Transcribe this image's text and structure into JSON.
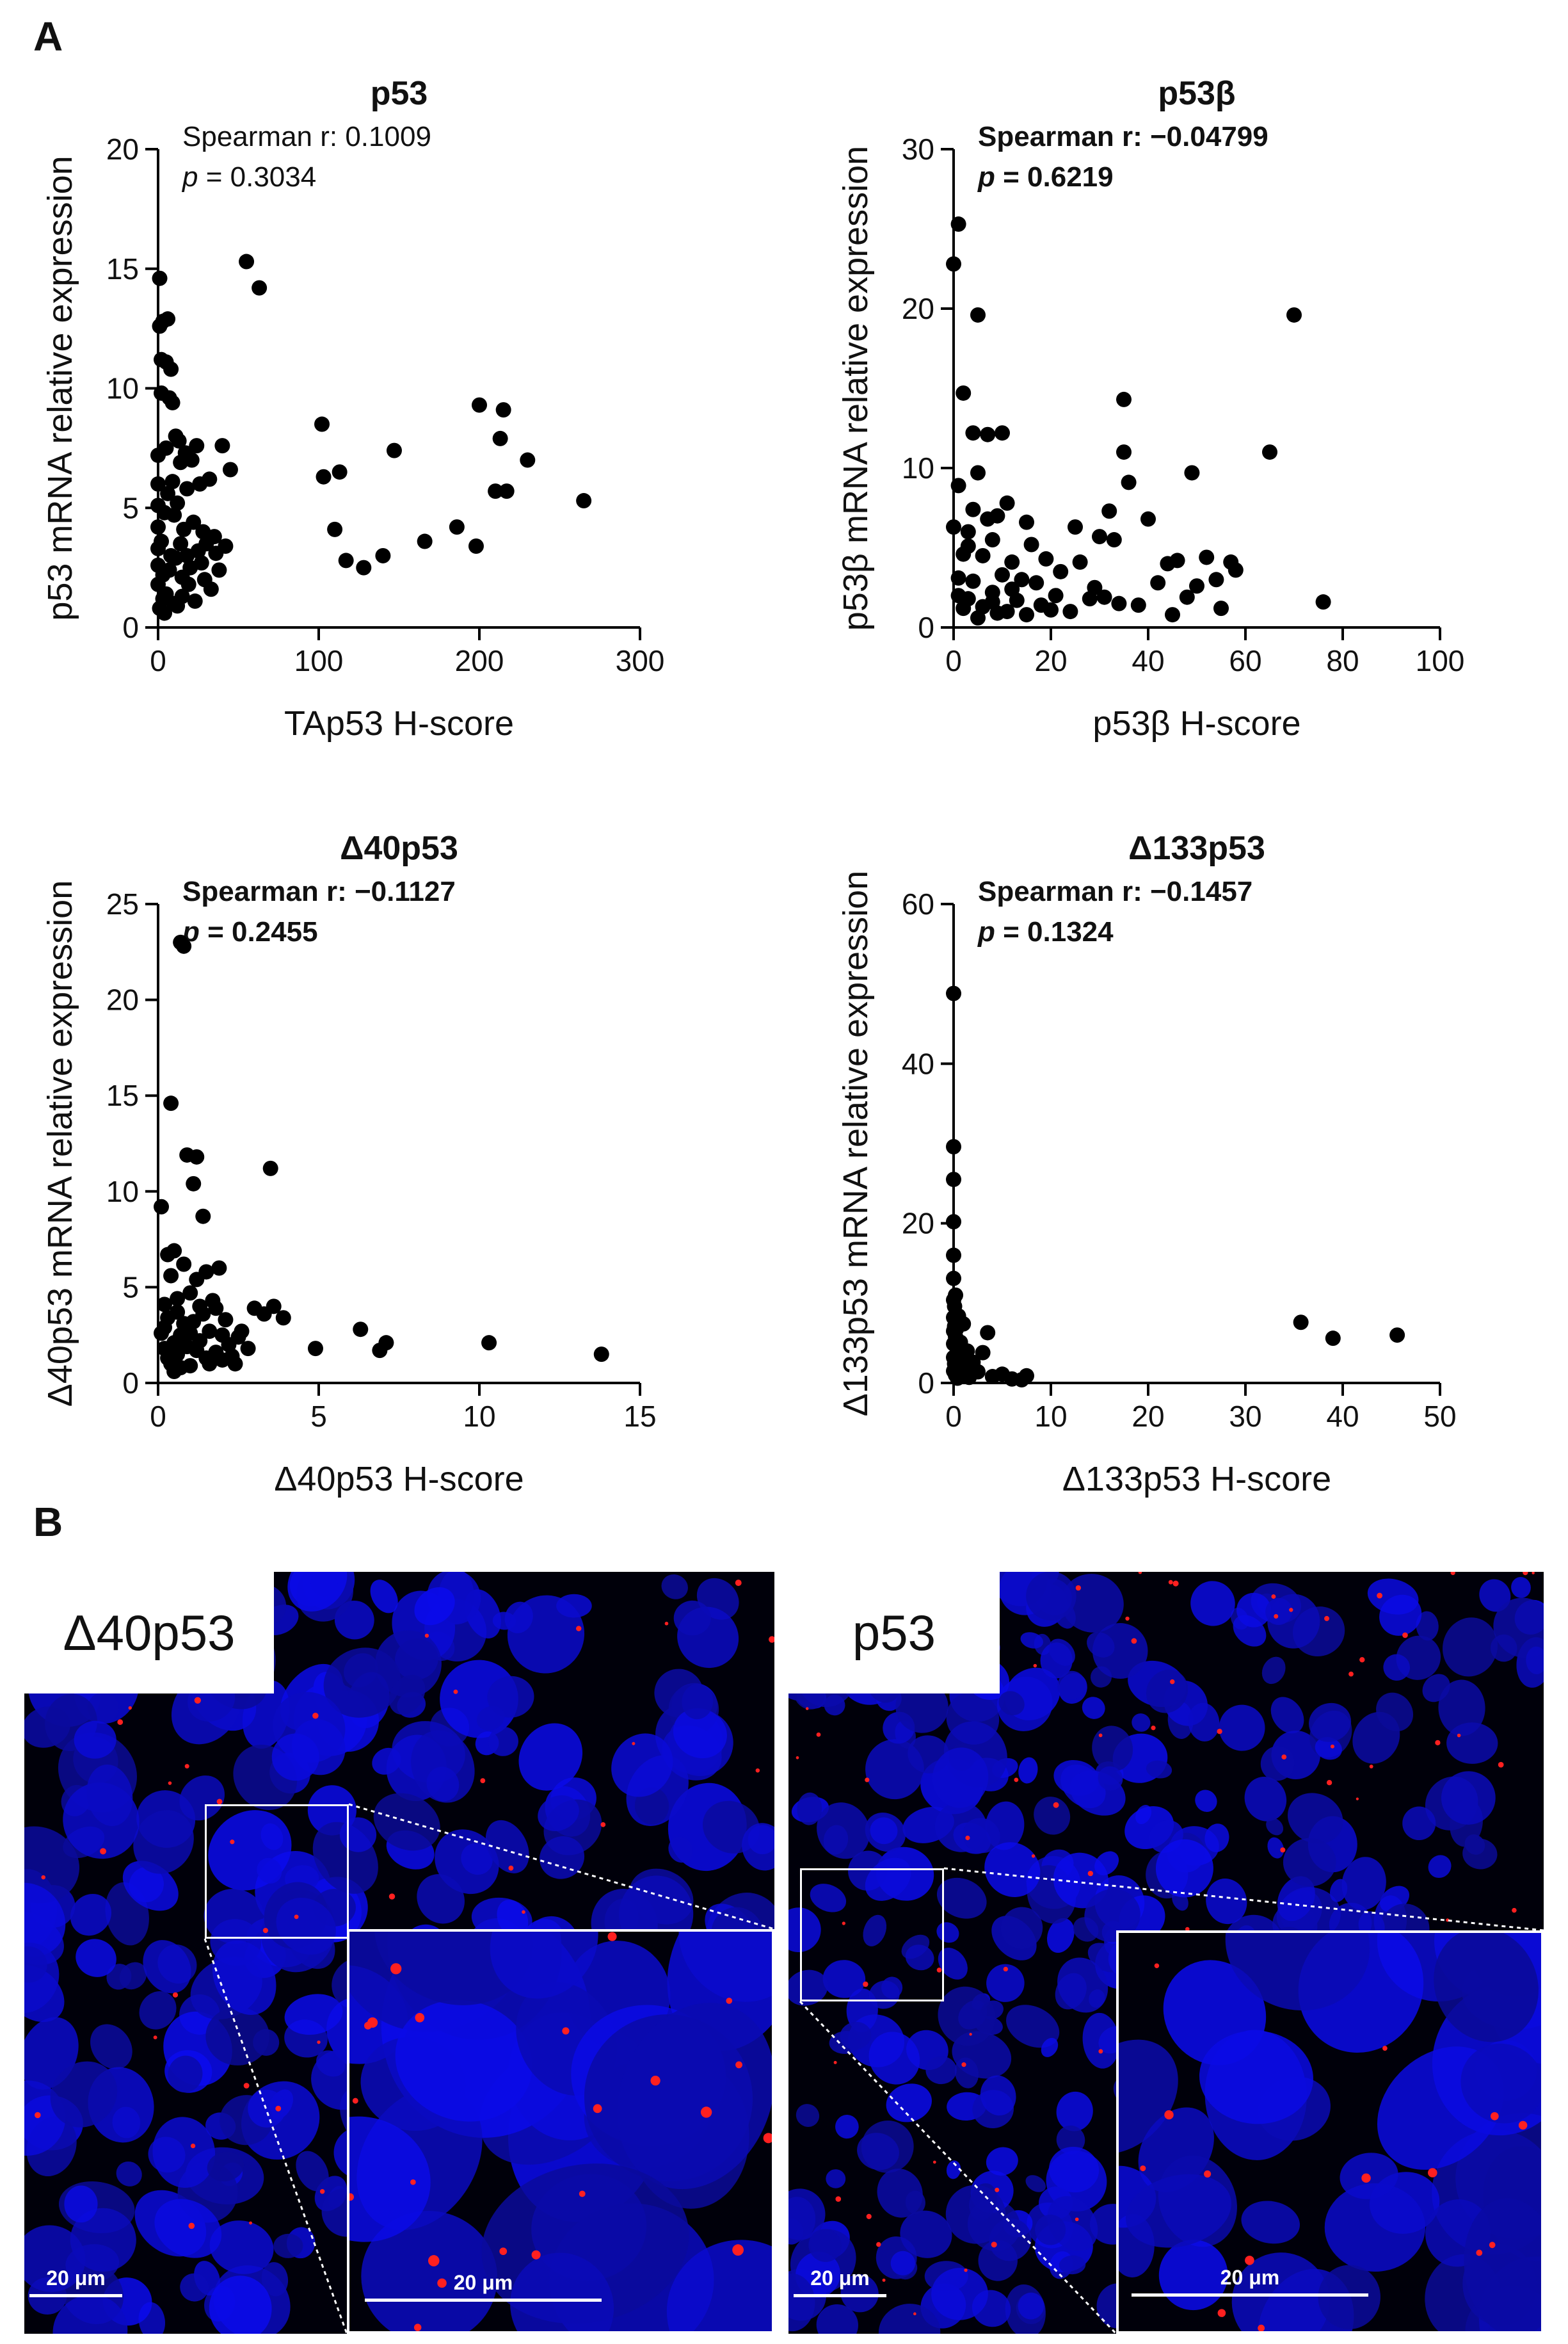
{
  "panel_labels": {
    "a": "A",
    "b": "B"
  },
  "chart_data": [
    {
      "type": "scatter",
      "title": "p53",
      "title_bold": true,
      "xlabel": "TAp53 H-score",
      "ylabel": "p53 mRNA relative expression",
      "xlim": [
        0,
        300
      ],
      "ylim": [
        0,
        20
      ],
      "xticks": [
        0,
        100,
        200,
        300
      ],
      "yticks": [
        0,
        5,
        10,
        15,
        20
      ],
      "stat_line1": "Spearman r: 0.1009",
      "stat_p_label": "p",
      "stat_p_value": " = 0.3034",
      "stat_bold": false,
      "x": [
        0,
        0,
        0,
        0,
        0,
        0,
        0,
        1,
        1,
        1,
        2,
        2,
        2,
        3,
        3,
        3,
        4,
        4,
        5,
        5,
        5,
        6,
        6,
        7,
        7,
        8,
        8,
        9,
        9,
        10,
        10,
        11,
        11,
        12,
        12,
        13,
        14,
        14,
        15,
        15,
        16,
        17,
        18,
        18,
        19,
        20,
        21,
        22,
        23,
        24,
        25,
        26,
        27,
        28,
        29,
        30,
        32,
        33,
        35,
        36,
        38,
        40,
        42,
        45,
        55,
        63,
        102,
        103,
        110,
        113,
        117,
        128,
        140,
        147,
        166,
        186,
        198,
        200,
        210,
        213,
        215,
        217,
        230,
        265
      ],
      "y": [
        4.2,
        5.1,
        6.0,
        1.8,
        2.6,
        3.3,
        7.2,
        12.6,
        14.6,
        0.8,
        11.2,
        3.6,
        9.8,
        1.2,
        2.2,
        12.8,
        4.8,
        0.6,
        11.1,
        7.5,
        1.4,
        12.9,
        5.6,
        9.6,
        2.4,
        3.0,
        10.8,
        9.4,
        6.1,
        1.0,
        4.7,
        2.9,
        8.0,
        5.2,
        0.9,
        7.8,
        3.5,
        6.9,
        2.1,
        1.3,
        4.1,
        7.3,
        3.0,
        5.8,
        1.8,
        2.5,
        7.0,
        4.4,
        1.1,
        7.6,
        3.2,
        6.0,
        2.7,
        4.0,
        2.0,
        3.5,
        6.2,
        1.6,
        3.8,
        3.1,
        2.4,
        7.6,
        3.4,
        6.6,
        15.3,
        14.2,
        8.5,
        6.3,
        4.1,
        6.5,
        2.8,
        2.5,
        3.0,
        7.4,
        3.6,
        4.2,
        3.4,
        9.3,
        5.7,
        7.9,
        9.1,
        5.7,
        7.0,
        5.3
      ]
    },
    {
      "type": "scatter",
      "title": "p53β",
      "title_bold": true,
      "xlabel": "p53β H-score",
      "ylabel": "p53β mRNA relative expression",
      "xlim": [
        0,
        100
      ],
      "ylim": [
        0,
        30
      ],
      "xticks": [
        0,
        20,
        40,
        60,
        80,
        100
      ],
      "yticks": [
        0,
        10,
        20,
        30
      ],
      "stat_line1": "Spearman r: −0.04799",
      "stat_p_label": "p",
      "stat_p_value": " = 0.6219",
      "stat_bold": true,
      "x": [
        0,
        0,
        1,
        1,
        1,
        1,
        2,
        2,
        2,
        3,
        3,
        3,
        4,
        4,
        4,
        5,
        5,
        5,
        6,
        6,
        7,
        7,
        8,
        8,
        8,
        9,
        9,
        10,
        10,
        11,
        11,
        12,
        12,
        13,
        14,
        15,
        15,
        16,
        17,
        18,
        19,
        20,
        21,
        22,
        24,
        25,
        26,
        28,
        29,
        30,
        31,
        32,
        33,
        34,
        35,
        35,
        36,
        38,
        40,
        42,
        44,
        45,
        46,
        48,
        49,
        50,
        52,
        54,
        55,
        57,
        58,
        65,
        70,
        76
      ],
      "y": [
        6.3,
        22.8,
        25.3,
        2.0,
        8.9,
        3.1,
        14.7,
        1.2,
        4.6,
        5.1,
        1.8,
        6.0,
        7.4,
        2.9,
        12.2,
        19.6,
        0.6,
        9.7,
        4.5,
        1.3,
        12.1,
        6.8,
        2.2,
        5.5,
        1.6,
        0.9,
        7.0,
        3.3,
        12.2,
        1.0,
        7.8,
        2.4,
        4.1,
        1.7,
        3.0,
        6.6,
        0.8,
        5.2,
        2.8,
        1.4,
        4.3,
        1.1,
        2.0,
        3.5,
        1.0,
        6.3,
        4.1,
        1.8,
        2.5,
        5.7,
        1.9,
        7.3,
        5.5,
        1.5,
        14.3,
        11.0,
        9.1,
        1.4,
        6.8,
        2.8,
        4.0,
        0.8,
        4.2,
        1.9,
        9.7,
        2.6,
        4.4,
        3.0,
        1.2,
        4.1,
        3.6,
        11.0,
        19.6,
        1.6
      ]
    },
    {
      "type": "scatter",
      "title": "Δ40p53",
      "title_bold": true,
      "xlabel": "Δ40p53 H-score",
      "ylabel": "Δ40p53 mRNA relative expression",
      "xlim": [
        0,
        15
      ],
      "ylim": [
        0,
        25
      ],
      "xticks": [
        0,
        5,
        10,
        15
      ],
      "yticks": [
        0,
        5,
        10,
        15,
        20,
        25
      ],
      "stat_line1": "Spearman r: −0.1127",
      "stat_p_label": "p",
      "stat_p_value": " = 0.2455",
      "stat_bold": true,
      "x": [
        0.1,
        0.1,
        0.2,
        0.2,
        0.2,
        0.3,
        0.3,
        0.3,
        0.4,
        0.4,
        0.4,
        0.5,
        0.5,
        0.5,
        0.6,
        0.6,
        0.6,
        0.7,
        0.7,
        0.7,
        0.8,
        0.8,
        0.8,
        0.9,
        0.9,
        1.0,
        1.0,
        1.0,
        1.1,
        1.1,
        1.2,
        1.2,
        1.2,
        1.3,
        1.3,
        1.4,
        1.4,
        1.5,
        1.5,
        1.6,
        1.6,
        1.7,
        1.8,
        1.8,
        1.9,
        2.0,
        2.0,
        2.1,
        2.2,
        2.3,
        2.4,
        2.5,
        2.6,
        2.8,
        3.0,
        3.3,
        3.5,
        3.6,
        3.9,
        4.9,
        6.3,
        6.9,
        7.1,
        10.3,
        13.8
      ],
      "y": [
        2.6,
        9.2,
        1.8,
        4.1,
        2.9,
        1.3,
        6.7,
        3.4,
        14.6,
        1.0,
        5.6,
        2.1,
        0.6,
        6.9,
        3.7,
        1.5,
        4.4,
        23.0,
        2.5,
        0.8,
        22.8,
        6.2,
        3.1,
        11.9,
        1.9,
        4.7,
        2.6,
        0.9,
        10.4,
        3.2,
        11.8,
        5.4,
        1.7,
        4.0,
        2.2,
        8.7,
        3.6,
        1.3,
        5.8,
        2.7,
        1.0,
        4.3,
        3.9,
        1.6,
        6.0,
        2.5,
        1.2,
        3.3,
        2.0,
        1.4,
        1.0,
        2.4,
        2.7,
        1.8,
        3.9,
        3.6,
        11.2,
        4.0,
        3.4,
        1.8,
        2.8,
        1.7,
        2.1,
        2.1,
        1.5
      ]
    },
    {
      "type": "scatter",
      "title": "Δ133p53",
      "title_bold": true,
      "xlabel": "Δ133p53 H-score",
      "ylabel": "Δ133p53 mRNA relative expression",
      "xlim": [
        0,
        50
      ],
      "ylim": [
        0,
        60
      ],
      "xticks": [
        0,
        10,
        20,
        30,
        40,
        50
      ],
      "yticks": [
        0,
        20,
        40,
        60
      ],
      "stat_line1": "Spearman r: −0.1457",
      "stat_p_label": "p",
      "stat_p_value": " = 0.1324",
      "stat_bold": true,
      "x": [
        0,
        0,
        0,
        0,
        0,
        0,
        0,
        0,
        0,
        0,
        0,
        0,
        0.1,
        0.1,
        0.1,
        0.2,
        0.2,
        0.2,
        0.3,
        0.3,
        0.4,
        0.4,
        0.5,
        0.5,
        0.6,
        0.7,
        0.8,
        0.9,
        1.0,
        1.1,
        1.2,
        1.4,
        1.6,
        2.0,
        2.5,
        3.0,
        3.5,
        4.0,
        5.0,
        6.0,
        7.0,
        7.5,
        35.7,
        39.0,
        45.6
      ],
      "y": [
        48.8,
        29.6,
        25.5,
        20.2,
        16.0,
        13.1,
        10.4,
        8.2,
        6.5,
        4.9,
        3.2,
        1.5,
        9.6,
        7.1,
        2.4,
        5.8,
        1.0,
        11.0,
        3.6,
        6.8,
        0.6,
        2.7,
        8.4,
        4.5,
        1.8,
        5.1,
        0.9,
        3.0,
        7.4,
        2.1,
        1.2,
        4.0,
        0.7,
        2.6,
        1.4,
        3.8,
        6.3,
        0.8,
        1.1,
        0.5,
        0.4,
        0.9,
        7.6,
        5.6,
        6.0
      ]
    }
  ],
  "micrographs": [
    {
      "label": "Δ40p53",
      "scale_bar": "20 μm",
      "inset_scale_bar": "20 μm"
    },
    {
      "label": "p53",
      "scale_bar": "20 μm",
      "inset_scale_bar": "20 μm"
    }
  ],
  "colors": {
    "marker": "#000000",
    "axis": "#000000",
    "nuclei": "#1414e6",
    "signal": "#ff2020",
    "background": "#00000a"
  }
}
